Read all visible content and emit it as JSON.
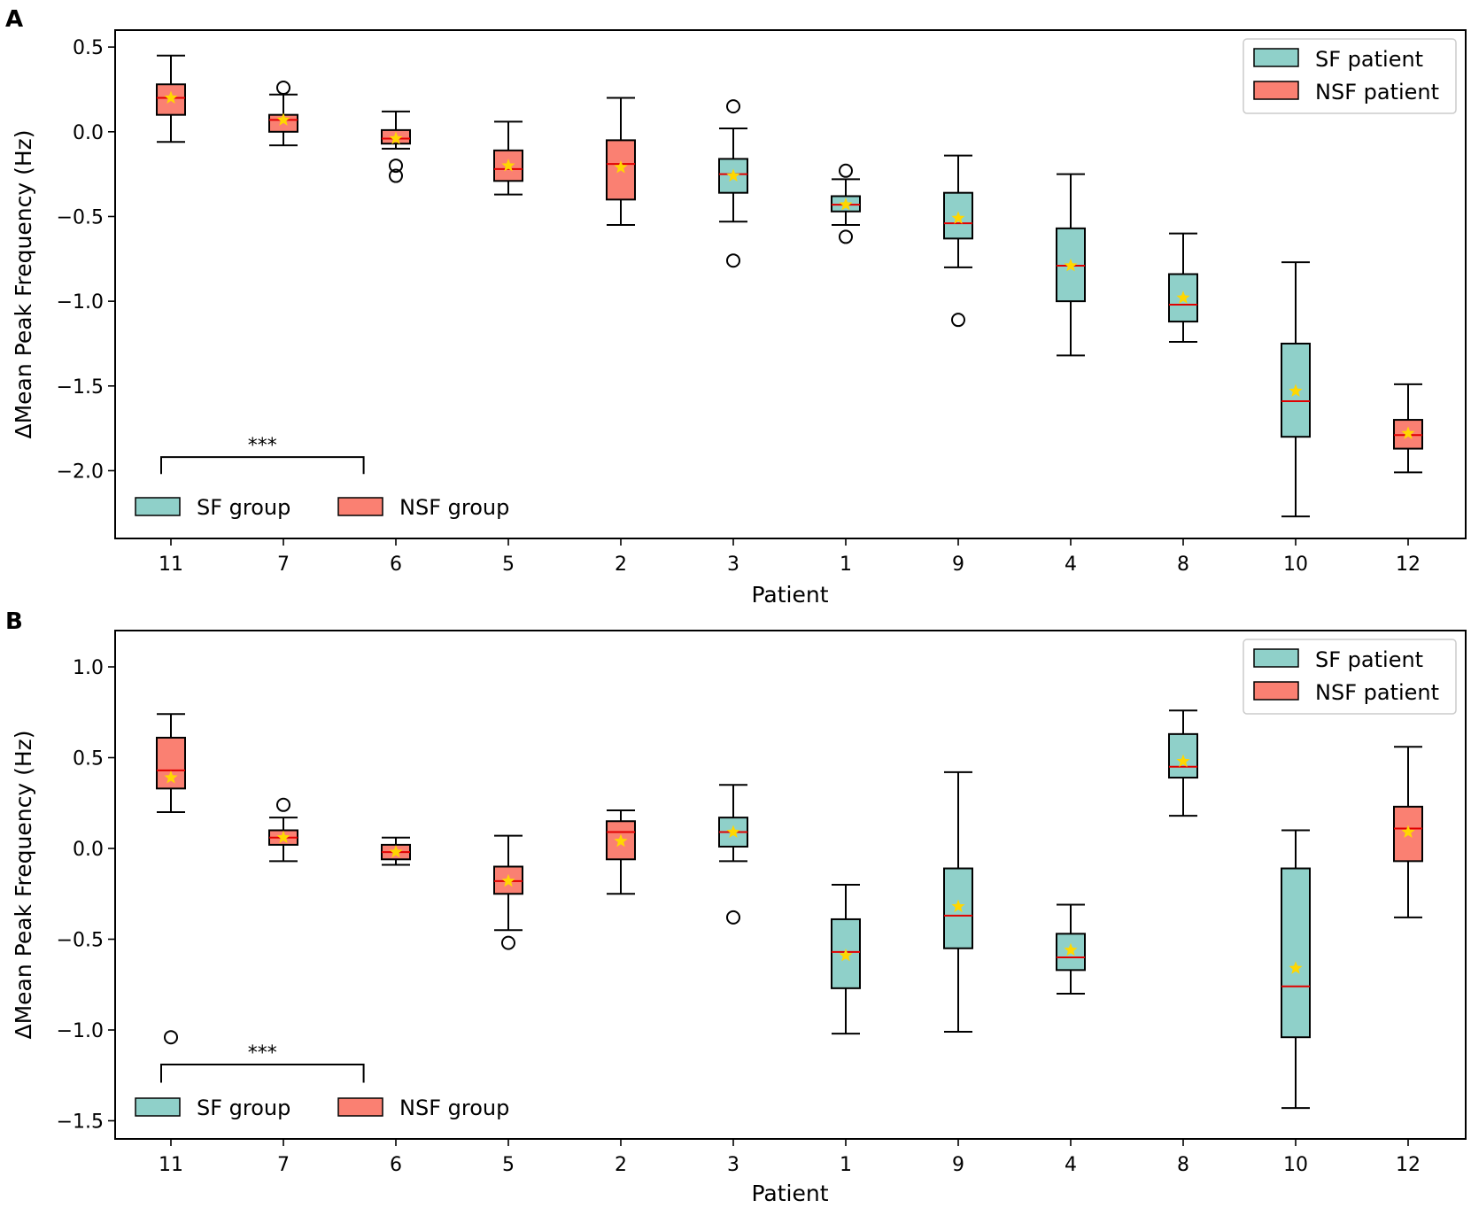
{
  "colors": {
    "sf_fill": "#8fd0c9",
    "nsf_fill": "#fa8072",
    "median": "#e00000",
    "mean_star": "#ffd700",
    "edge": "#000000"
  },
  "legend_patient": {
    "sf": "SF patient",
    "nsf": "NSF patient"
  },
  "legend_group": {
    "sf": "SF group",
    "nsf": "NSF group"
  },
  "chart_data": [
    {
      "panel": "A",
      "type": "box",
      "xlabel": "Patient",
      "ylabel": "ΔMean Peak Frequency (Hz)",
      "ylim": [
        -2.4,
        0.6
      ],
      "yticks": [
        0.5,
        0.0,
        -0.5,
        -1.0,
        -1.5,
        -2.0
      ],
      "ytick_labels": [
        "0.5",
        "0.0",
        "−0.5",
        "−1.0",
        "−1.5",
        "−2.0"
      ],
      "significance": {
        "label": "***",
        "y": -1.92,
        "drop": 0.1,
        "from": 0,
        "to": 1.8
      },
      "boxes": [
        {
          "patient": "11",
          "group": "NSF",
          "whisker_low": -0.06,
          "q1": 0.1,
          "median": 0.2,
          "q3": 0.28,
          "whisker_high": 0.45,
          "mean": 0.2,
          "outliers": []
        },
        {
          "patient": "7",
          "group": "NSF",
          "whisker_low": -0.08,
          "q1": 0.0,
          "median": 0.07,
          "q3": 0.1,
          "whisker_high": 0.22,
          "mean": 0.07,
          "outliers": [
            0.26
          ]
        },
        {
          "patient": "6",
          "group": "NSF",
          "whisker_low": -0.1,
          "q1": -0.07,
          "median": -0.04,
          "q3": 0.01,
          "whisker_high": 0.12,
          "mean": -0.04,
          "outliers": [
            -0.2,
            -0.26
          ]
        },
        {
          "patient": "5",
          "group": "NSF",
          "whisker_low": -0.37,
          "q1": -0.29,
          "median": -0.22,
          "q3": -0.11,
          "whisker_high": 0.06,
          "mean": -0.2,
          "outliers": []
        },
        {
          "patient": "2",
          "group": "NSF",
          "whisker_low": -0.55,
          "q1": -0.4,
          "median": -0.19,
          "q3": -0.05,
          "whisker_high": 0.2,
          "mean": -0.21,
          "outliers": []
        },
        {
          "patient": "3",
          "group": "SF",
          "whisker_low": -0.53,
          "q1": -0.36,
          "median": -0.25,
          "q3": -0.16,
          "whisker_high": 0.02,
          "mean": -0.26,
          "outliers": [
            0.15,
            -0.76
          ]
        },
        {
          "patient": "1",
          "group": "SF",
          "whisker_low": -0.55,
          "q1": -0.47,
          "median": -0.43,
          "q3": -0.38,
          "whisker_high": -0.28,
          "mean": -0.43,
          "outliers": [
            -0.23,
            -0.62
          ]
        },
        {
          "patient": "9",
          "group": "SF",
          "whisker_low": -0.8,
          "q1": -0.63,
          "median": -0.54,
          "q3": -0.36,
          "whisker_high": -0.14,
          "mean": -0.51,
          "outliers": [
            -1.11
          ]
        },
        {
          "patient": "4",
          "group": "SF",
          "whisker_low": -1.32,
          "q1": -1.0,
          "median": -0.79,
          "q3": -0.57,
          "whisker_high": -0.25,
          "mean": -0.79,
          "outliers": []
        },
        {
          "patient": "8",
          "group": "SF",
          "whisker_low": -1.24,
          "q1": -1.12,
          "median": -1.02,
          "q3": -0.84,
          "whisker_high": -0.6,
          "mean": -0.98,
          "outliers": []
        },
        {
          "patient": "10",
          "group": "SF",
          "whisker_low": -2.27,
          "q1": -1.8,
          "median": -1.59,
          "q3": -1.25,
          "whisker_high": -0.77,
          "mean": -1.53,
          "outliers": []
        },
        {
          "patient": "12",
          "group": "NSF",
          "whisker_low": -2.01,
          "q1": -1.87,
          "median": -1.79,
          "q3": -1.7,
          "whisker_high": -1.49,
          "mean": -1.78,
          "outliers": []
        }
      ]
    },
    {
      "panel": "B",
      "type": "box",
      "xlabel": "Patient",
      "ylabel": "ΔMean Peak Frequency (Hz)",
      "ylim": [
        -1.6,
        1.2
      ],
      "yticks": [
        1.0,
        0.5,
        0.0,
        -0.5,
        -1.0,
        -1.5
      ],
      "ytick_labels": [
        "1.0",
        "0.5",
        "0.0",
        "−0.5",
        "−1.0",
        "−1.5"
      ],
      "significance": {
        "label": "***",
        "y": -1.19,
        "drop": 0.1,
        "from": 0,
        "to": 1.8
      },
      "boxes": [
        {
          "patient": "11",
          "group": "NSF",
          "whisker_low": 0.2,
          "q1": 0.33,
          "median": 0.43,
          "q3": 0.61,
          "whisker_high": 0.74,
          "mean": 0.39,
          "outliers": [
            -1.04
          ]
        },
        {
          "patient": "7",
          "group": "NSF",
          "whisker_low": -0.07,
          "q1": 0.02,
          "median": 0.06,
          "q3": 0.1,
          "whisker_high": 0.17,
          "mean": 0.06,
          "outliers": [
            0.24
          ]
        },
        {
          "patient": "6",
          "group": "NSF",
          "whisker_low": -0.09,
          "q1": -0.06,
          "median": -0.02,
          "q3": 0.02,
          "whisker_high": 0.06,
          "mean": -0.02,
          "outliers": []
        },
        {
          "patient": "5",
          "group": "NSF",
          "whisker_low": -0.45,
          "q1": -0.25,
          "median": -0.18,
          "q3": -0.1,
          "whisker_high": 0.07,
          "mean": -0.18,
          "outliers": [
            -0.52
          ]
        },
        {
          "patient": "2",
          "group": "NSF",
          "whisker_low": -0.25,
          "q1": -0.06,
          "median": 0.09,
          "q3": 0.15,
          "whisker_high": 0.21,
          "mean": 0.04,
          "outliers": []
        },
        {
          "patient": "3",
          "group": "SF",
          "whisker_low": -0.07,
          "q1": 0.01,
          "median": 0.09,
          "q3": 0.17,
          "whisker_high": 0.35,
          "mean": 0.09,
          "outliers": [
            -0.38
          ]
        },
        {
          "patient": "1",
          "group": "SF",
          "whisker_low": -1.02,
          "q1": -0.77,
          "median": -0.57,
          "q3": -0.39,
          "whisker_high": -0.2,
          "mean": -0.59,
          "outliers": []
        },
        {
          "patient": "9",
          "group": "SF",
          "whisker_low": -1.01,
          "q1": -0.55,
          "median": -0.37,
          "q3": -0.11,
          "whisker_high": 0.42,
          "mean": -0.32,
          "outliers": []
        },
        {
          "patient": "4",
          "group": "SF",
          "whisker_low": -0.8,
          "q1": -0.67,
          "median": -0.6,
          "q3": -0.47,
          "whisker_high": -0.31,
          "mean": -0.56,
          "outliers": []
        },
        {
          "patient": "8",
          "group": "SF",
          "whisker_low": 0.18,
          "q1": 0.39,
          "median": 0.45,
          "q3": 0.63,
          "whisker_high": 0.76,
          "mean": 0.48,
          "outliers": []
        },
        {
          "patient": "10",
          "group": "SF",
          "whisker_low": -1.43,
          "q1": -1.04,
          "median": -0.76,
          "q3": -0.11,
          "whisker_high": 0.1,
          "mean": -0.66,
          "outliers": []
        },
        {
          "patient": "12",
          "group": "NSF",
          "whisker_low": -0.38,
          "q1": -0.07,
          "median": 0.11,
          "q3": 0.23,
          "whisker_high": 0.56,
          "mean": 0.09,
          "outliers": []
        }
      ]
    }
  ]
}
